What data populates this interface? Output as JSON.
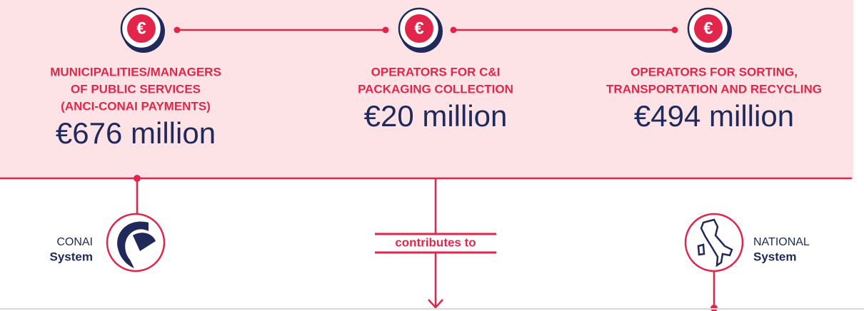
{
  "coin_symbol": "€",
  "payments": [
    {
      "label": [
        "MUNICIPALITIES/MANAGERS",
        "OF PUBLIC SERVICES",
        "(ANCI-CONAI PAYMENTS)"
      ],
      "amount": "€676 million"
    },
    {
      "label": [
        "OPERATORS FOR C&I",
        "PACKAGING COLLECTION"
      ],
      "amount": "€20 million"
    },
    {
      "label": [
        "OPERATORS FOR SORTING,",
        "TRANSPORTATION AND RECYCLING"
      ],
      "amount": "€494 million"
    }
  ],
  "left_system": {
    "prefix": "CONAI",
    "name": "System"
  },
  "connector": "contributes to",
  "right_system": {
    "prefix": "NATIONAL",
    "name": "System"
  }
}
